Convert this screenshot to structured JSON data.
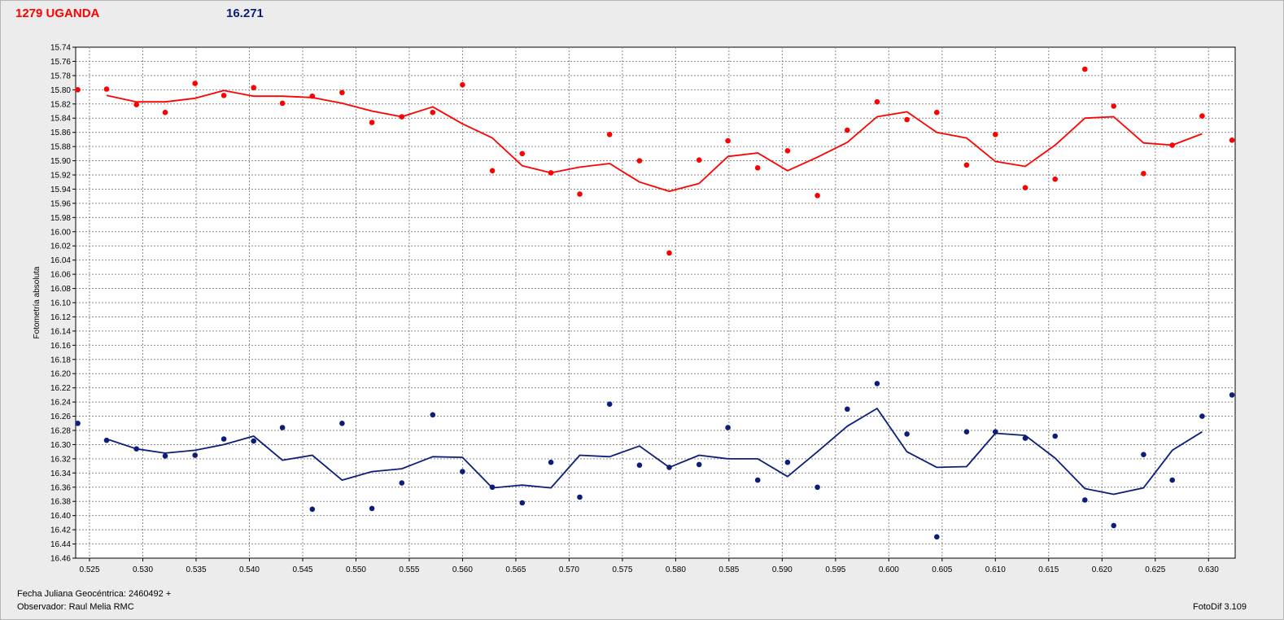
{
  "header": {
    "object": "1279 UGANDA",
    "value": "16.271"
  },
  "footer": {
    "date_label": "Fecha Juliana Geocéntrica: 2460492 +",
    "observer": "Observador: Raul Melia RMC",
    "software": "FotoDif 3.109"
  },
  "chart_data": {
    "type": "scatter",
    "title": "",
    "xlabel": "",
    "ylabel": "Fotometría absoluta",
    "xlim": [
      0.5237,
      0.6325
    ],
    "ylim": [
      15.74,
      16.46
    ],
    "y_inverted": true,
    "grid": true,
    "x_ticks": [
      "0.525",
      "0.530",
      "0.535",
      "0.540",
      "0.545",
      "0.550",
      "0.555",
      "0.560",
      "0.565",
      "0.570",
      "0.575",
      "0.580",
      "0.585",
      "0.590",
      "0.595",
      "0.600",
      "0.605",
      "0.610",
      "0.615",
      "0.620",
      "0.625",
      "0.630"
    ],
    "y_ticks": [
      "15.74",
      "15.76",
      "15.78",
      "15.80",
      "15.82",
      "15.84",
      "15.86",
      "15.88",
      "15.90",
      "15.92",
      "15.94",
      "15.96",
      "15.98",
      "16.00",
      "16.02",
      "16.04",
      "16.06",
      "16.08",
      "16.10",
      "16.12",
      "16.14",
      "16.16",
      "16.18",
      "16.20",
      "16.22",
      "16.24",
      "16.26",
      "16.28",
      "16.30",
      "16.32",
      "16.34",
      "16.36",
      "16.38",
      "16.40",
      "16.42",
      "16.44",
      "16.46"
    ],
    "series": [
      {
        "color": "#ff0000",
        "points": [
          [
            0.5239,
            15.8
          ],
          [
            0.5266,
            15.799
          ],
          [
            0.5294,
            15.821
          ],
          [
            0.5321,
            15.832
          ],
          [
            0.5349,
            15.791
          ],
          [
            0.5376,
            15.808
          ],
          [
            0.5404,
            15.797
          ],
          [
            0.5431,
            15.819
          ],
          [
            0.5459,
            15.809
          ],
          [
            0.5487,
            15.804
          ],
          [
            0.5515,
            15.846
          ],
          [
            0.5543,
            15.838
          ],
          [
            0.5572,
            15.832
          ],
          [
            0.56,
            15.793
          ],
          [
            0.5628,
            15.914
          ],
          [
            0.5656,
            15.89
          ],
          [
            0.5683,
            15.917
          ],
          [
            0.571,
            15.947
          ],
          [
            0.5738,
            15.863
          ],
          [
            0.5766,
            15.9
          ],
          [
            0.5794,
            16.03
          ],
          [
            0.5822,
            15.899
          ],
          [
            0.5849,
            15.872
          ],
          [
            0.5877,
            15.91
          ],
          [
            0.5905,
            15.886
          ],
          [
            0.5933,
            15.949
          ],
          [
            0.5961,
            15.857
          ],
          [
            0.5989,
            15.817
          ],
          [
            0.6017,
            15.842
          ],
          [
            0.6045,
            15.832
          ],
          [
            0.6073,
            15.906
          ],
          [
            0.61,
            15.863
          ],
          [
            0.6128,
            15.938
          ],
          [
            0.6156,
            15.926
          ],
          [
            0.6184,
            15.771
          ],
          [
            0.6211,
            15.823
          ],
          [
            0.6239,
            15.918
          ],
          [
            0.6266,
            15.878
          ],
          [
            0.6294,
            15.837
          ],
          [
            0.6322,
            15.871
          ]
        ],
        "line": [
          [
            0.5266,
            15.808
          ],
          [
            0.5294,
            15.817
          ],
          [
            0.5321,
            15.817
          ],
          [
            0.5349,
            15.812
          ],
          [
            0.5376,
            15.801
          ],
          [
            0.5404,
            15.809
          ],
          [
            0.5431,
            15.809
          ],
          [
            0.5459,
            15.811
          ],
          [
            0.5487,
            15.819
          ],
          [
            0.5515,
            15.83
          ],
          [
            0.5543,
            15.838
          ],
          [
            0.5572,
            15.824
          ],
          [
            0.56,
            15.848
          ],
          [
            0.5628,
            15.868
          ],
          [
            0.5656,
            15.907
          ],
          [
            0.5683,
            15.917
          ],
          [
            0.571,
            15.909
          ],
          [
            0.5738,
            15.904
          ],
          [
            0.5766,
            15.93
          ],
          [
            0.5794,
            15.943
          ],
          [
            0.5822,
            15.932
          ],
          [
            0.5849,
            15.894
          ],
          [
            0.5877,
            15.889
          ],
          [
            0.5905,
            15.914
          ],
          [
            0.5933,
            15.895
          ],
          [
            0.5961,
            15.874
          ],
          [
            0.5989,
            15.838
          ],
          [
            0.6017,
            15.831
          ],
          [
            0.6045,
            15.86
          ],
          [
            0.6073,
            15.868
          ],
          [
            0.61,
            15.901
          ],
          [
            0.6128,
            15.908
          ],
          [
            0.6156,
            15.878
          ],
          [
            0.6184,
            15.84
          ],
          [
            0.6211,
            15.838
          ],
          [
            0.6239,
            15.875
          ],
          [
            0.6266,
            15.878
          ],
          [
            0.6294,
            15.862
          ]
        ]
      },
      {
        "color": "#0c1e7a",
        "points": [
          [
            0.5239,
            16.27
          ],
          [
            0.5266,
            16.294
          ],
          [
            0.5294,
            16.306
          ],
          [
            0.5321,
            16.316
          ],
          [
            0.5349,
            16.315
          ],
          [
            0.5376,
            16.292
          ],
          [
            0.5404,
            16.295
          ],
          [
            0.5431,
            16.276
          ],
          [
            0.5459,
            16.391
          ],
          [
            0.5487,
            16.27
          ],
          [
            0.5515,
            16.39
          ],
          [
            0.5543,
            16.354
          ],
          [
            0.5572,
            16.258
          ],
          [
            0.56,
            16.338
          ],
          [
            0.5628,
            16.36
          ],
          [
            0.5656,
            16.382
          ],
          [
            0.5683,
            16.325
          ],
          [
            0.571,
            16.374
          ],
          [
            0.5738,
            16.243
          ],
          [
            0.5766,
            16.329
          ],
          [
            0.5794,
            16.332
          ],
          [
            0.5822,
            16.328
          ],
          [
            0.5849,
            16.276
          ],
          [
            0.5877,
            16.35
          ],
          [
            0.5905,
            16.325
          ],
          [
            0.5933,
            16.36
          ],
          [
            0.5961,
            16.25
          ],
          [
            0.5989,
            16.214
          ],
          [
            0.6017,
            16.285
          ],
          [
            0.6045,
            16.43
          ],
          [
            0.6073,
            16.282
          ],
          [
            0.61,
            16.282
          ],
          [
            0.6128,
            16.291
          ],
          [
            0.6156,
            16.288
          ],
          [
            0.6184,
            16.378
          ],
          [
            0.6211,
            16.414
          ],
          [
            0.6239,
            16.314
          ],
          [
            0.6266,
            16.35
          ],
          [
            0.6294,
            16.26
          ],
          [
            0.6322,
            16.23
          ]
        ],
        "line": [
          [
            0.5266,
            16.292
          ],
          [
            0.5294,
            16.306
          ],
          [
            0.5321,
            16.312
          ],
          [
            0.5349,
            16.308
          ],
          [
            0.5376,
            16.3
          ],
          [
            0.5404,
            16.288
          ],
          [
            0.5431,
            16.322
          ],
          [
            0.5459,
            16.315
          ],
          [
            0.5487,
            16.35
          ],
          [
            0.5515,
            16.338
          ],
          [
            0.5543,
            16.334
          ],
          [
            0.5572,
            16.317
          ],
          [
            0.56,
            16.318
          ],
          [
            0.5628,
            16.361
          ],
          [
            0.5656,
            16.357
          ],
          [
            0.5683,
            16.361
          ],
          [
            0.571,
            16.315
          ],
          [
            0.5738,
            16.317
          ],
          [
            0.5766,
            16.302
          ],
          [
            0.5794,
            16.332
          ],
          [
            0.5822,
            16.315
          ],
          [
            0.5849,
            16.32
          ],
          [
            0.5877,
            16.32
          ],
          [
            0.5905,
            16.345
          ],
          [
            0.5933,
            16.31
          ],
          [
            0.5961,
            16.274
          ],
          [
            0.5989,
            16.249
          ],
          [
            0.6017,
            16.31
          ],
          [
            0.6045,
            16.332
          ],
          [
            0.6073,
            16.331
          ],
          [
            0.61,
            16.284
          ],
          [
            0.6128,
            16.287
          ],
          [
            0.6156,
            16.319
          ],
          [
            0.6184,
            16.362
          ],
          [
            0.6211,
            16.37
          ],
          [
            0.6239,
            16.361
          ],
          [
            0.6266,
            16.308
          ],
          [
            0.6294,
            16.282
          ]
        ]
      }
    ]
  }
}
